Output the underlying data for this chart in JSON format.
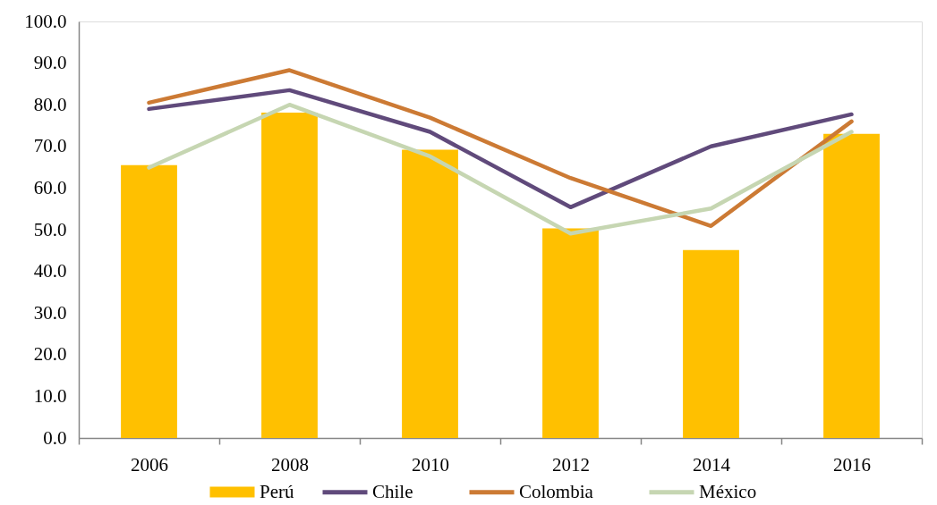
{
  "chart_data": {
    "type": "bar",
    "categories": [
      "2006",
      "2008",
      "2010",
      "2012",
      "2014",
      "2016"
    ],
    "ylim": [
      0,
      100
    ],
    "yticks": [
      {
        "value": 0,
        "label": "0.0"
      },
      {
        "value": 10,
        "label": "10.0"
      },
      {
        "value": 20,
        "label": "20.0"
      },
      {
        "value": 30,
        "label": "30.0"
      },
      {
        "value": 40,
        "label": "40.0"
      },
      {
        "value": 50,
        "label": "50.0"
      },
      {
        "value": 60,
        "label": "60.0"
      },
      {
        "value": 70,
        "label": "70.0"
      },
      {
        "value": 80,
        "label": "80.0"
      },
      {
        "value": 90,
        "label": "90.0"
      },
      {
        "value": 100,
        "label": "100.0"
      }
    ],
    "legend": "bottom",
    "series": [
      {
        "name": "Perú",
        "color": "#ffc000",
        "values": [
          65.5,
          78.1,
          69.2,
          50.3,
          45.1,
          73.0
        ]
      },
      {
        "name": "Chile",
        "type": "line",
        "color": "#604a7b",
        "values": [
          79.0,
          83.5,
          73.5,
          55.4,
          70.0,
          77.7
        ]
      },
      {
        "name": "Colombia",
        "type": "line",
        "color": "#cc7a34",
        "values": [
          80.5,
          88.3,
          76.9,
          62.4,
          50.9,
          76.0
        ]
      },
      {
        "name": "México",
        "type": "line",
        "color": "#c6d6b2",
        "values": [
          64.9,
          80.0,
          67.6,
          49.1,
          55.1,
          73.5
        ]
      }
    ]
  }
}
